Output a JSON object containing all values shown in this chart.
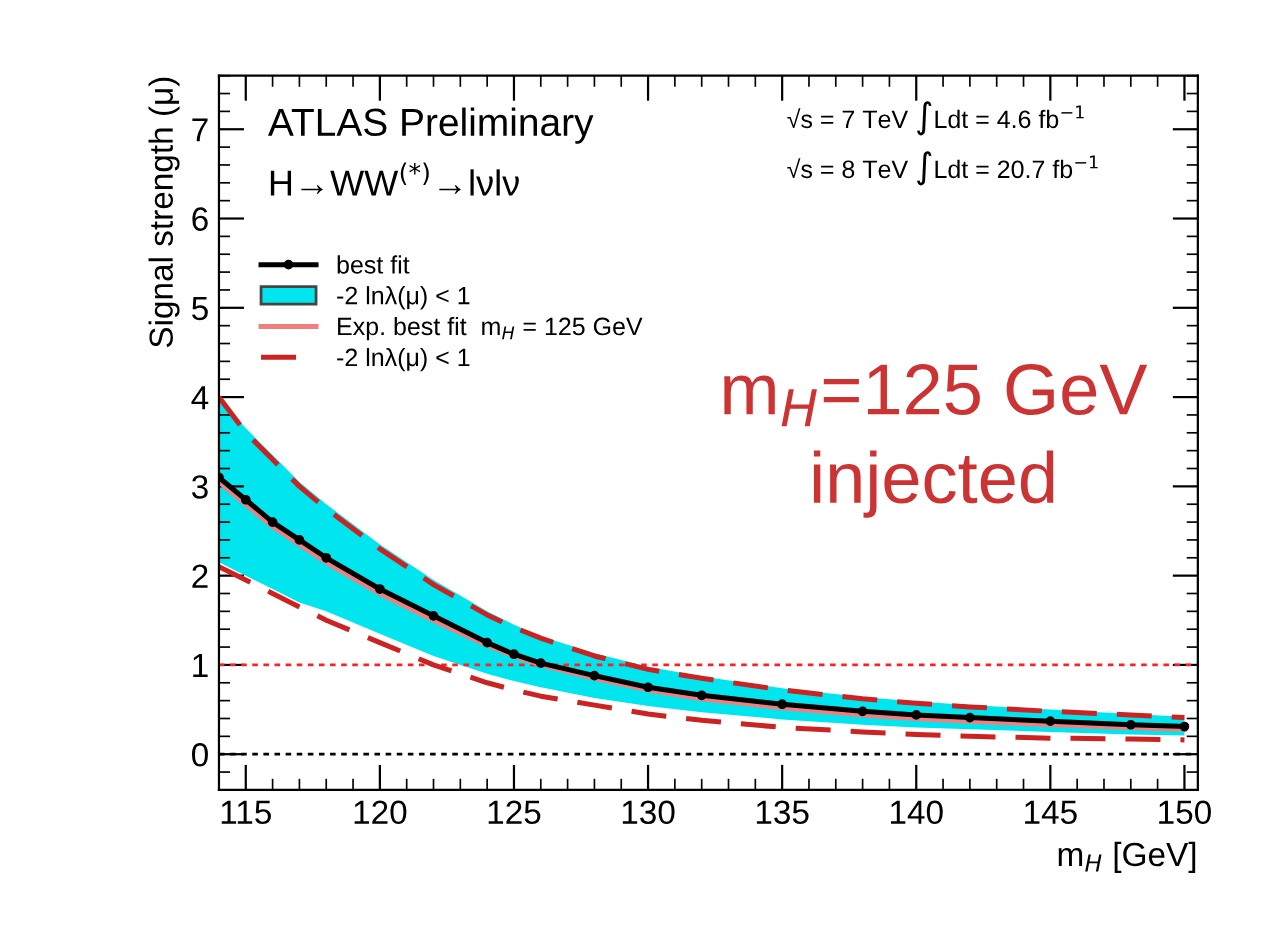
{
  "chart_data": {
    "type": "line",
    "xlabel": "m$_{H}$ [GeV]",
    "ylabel": "Signal strength (μ)",
    "x": [
      114,
      115,
      116,
      117,
      118,
      120,
      122,
      124,
      125,
      126,
      128,
      130,
      132,
      135,
      138,
      140,
      142,
      145,
      148,
      150
    ],
    "xlim": [
      114,
      150.5
    ],
    "xticks": [
      115,
      120,
      125,
      130,
      135,
      140,
      145,
      150
    ],
    "ylim": [
      -0.4,
      7.6
    ],
    "yticks": [
      0,
      1,
      2,
      3,
      4,
      5,
      6,
      7
    ],
    "series": [
      {
        "name": "best fit",
        "color": "#000000",
        "line_style": "solid",
        "marker": "circle",
        "values": [
          3.1,
          2.85,
          2.6,
          2.4,
          2.2,
          1.85,
          1.55,
          1.25,
          1.12,
          1.02,
          0.88,
          0.75,
          0.66,
          0.56,
          0.48,
          0.44,
          0.41,
          0.37,
          0.33,
          0.31
        ],
        "lower": [
          2.15,
          2.0,
          1.85,
          1.7,
          1.6,
          1.35,
          1.1,
          0.9,
          0.82,
          0.75,
          0.63,
          0.54,
          0.47,
          0.39,
          0.33,
          0.3,
          0.28,
          0.25,
          0.22,
          0.21
        ],
        "upper": [
          4.0,
          3.65,
          3.35,
          3.05,
          2.8,
          2.35,
          1.95,
          1.6,
          1.45,
          1.32,
          1.13,
          0.98,
          0.87,
          0.74,
          0.64,
          0.59,
          0.55,
          0.5,
          0.45,
          0.42
        ]
      },
      {
        "name": "-2 lnλ(μ) < 1",
        "type": "area",
        "color": "#00e5ee",
        "values": [
          null,
          null,
          null,
          null,
          null,
          null,
          null,
          null,
          null,
          null,
          null,
          null,
          null,
          null,
          null,
          null,
          null,
          null,
          null,
          null
        ]
      },
      {
        "name": "Exp. best fit  m$_{H}$ = 125 GeV",
        "color": "#f08080",
        "line_style": "solid",
        "values": [
          3.05,
          2.8,
          2.55,
          2.35,
          2.15,
          1.8,
          1.5,
          1.22,
          1.1,
          1.0,
          0.85,
          0.72,
          0.62,
          0.52,
          0.44,
          0.4,
          0.37,
          0.33,
          0.3,
          0.28
        ]
      },
      {
        "name": "-2 lnλ(μ) < 1",
        "color": "#cc2222",
        "line_style": "dashed",
        "values": [
          2.1,
          1.95,
          1.8,
          1.65,
          1.5,
          1.25,
          1.0,
          0.8,
          0.72,
          0.65,
          0.55,
          0.45,
          0.38,
          0.3,
          0.25,
          0.22,
          0.2,
          0.18,
          0.17,
          0.16
        ]
      },
      {
        "color": "#cc2222",
        "line_style": "dashed",
        "values": [
          4.0,
          3.6,
          3.3,
          3.0,
          2.75,
          2.3,
          1.9,
          1.56,
          1.42,
          1.3,
          1.1,
          0.95,
          0.85,
          0.72,
          0.62,
          0.57,
          0.53,
          0.48,
          0.44,
          0.41
        ]
      }
    ],
    "ref_lines": [
      {
        "axis": "y",
        "value": 1,
        "color": "#ff2020",
        "line_style": "dotted"
      },
      {
        "axis": "y",
        "value": 0,
        "color": "#000000",
        "line_style": "dotted"
      }
    ],
    "annotations": [
      "ATLAS Preliminary",
      "H→WW$^{(*)}$→lνlν",
      "√s = 7 TeV ∫Ldt = 4.6 fb$^{−1}$",
      "√s = 8 TeV ∫Ldt = 20.7 fb$^{−1}$",
      "m$_{H}$=125 GeV\ninjected"
    ],
    "legend": "top left",
    "grid": false
  }
}
